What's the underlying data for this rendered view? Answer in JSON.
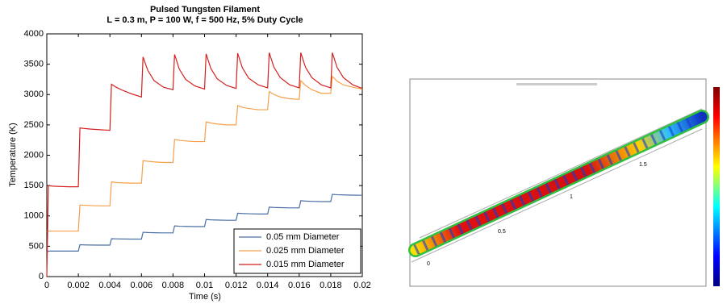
{
  "chart_data": {
    "type": "line",
    "title": "Pulsed Tungsten Filament",
    "subtitle": "L = 0.3 m, P = 100 W, f = 500 Hz, 5% Duty Cycle",
    "x_label": "Time (s)",
    "y_label": "Temperature (K)",
    "xlim": [
      0,
      0.02
    ],
    "ylim": [
      0,
      4000
    ],
    "xticks": [
      0,
      0.002,
      0.004,
      0.006,
      0.008,
      0.01,
      0.012,
      0.014,
      0.016,
      0.018,
      0.02
    ],
    "yticks": [
      0,
      500,
      1000,
      1500,
      2000,
      2500,
      3000,
      3500,
      4000
    ],
    "legend": "lower right",
    "x": [
      0,
      0.0001,
      0.0004,
      0.0008,
      0.0014,
      0.002,
      0.0021,
      0.0024,
      0.0028,
      0.0034,
      0.004,
      0.0041,
      0.0044,
      0.0048,
      0.0054,
      0.006,
      0.0061,
      0.0064,
      0.0068,
      0.0074,
      0.008,
      0.0081,
      0.0084,
      0.0088,
      0.0094,
      0.01,
      0.0101,
      0.0104,
      0.0108,
      0.0114,
      0.012,
      0.0121,
      0.0124,
      0.0128,
      0.0134,
      0.014,
      0.0141,
      0.0144,
      0.0148,
      0.0154,
      0.016,
      0.0161,
      0.0164,
      0.0168,
      0.0174,
      0.018,
      0.0181,
      0.0184,
      0.0188,
      0.0194,
      0.02
    ],
    "series": [
      {
        "name": "0.05 mm Diameter",
        "color": "#4a6fa5",
        "values": [
          400,
          420,
          420,
          420,
          420,
          420,
          525,
          522,
          520,
          518,
          518,
          625,
          622,
          620,
          618,
          618,
          730,
          726,
          723,
          720,
          720,
          835,
          830,
          827,
          824,
          824,
          940,
          935,
          932,
          928,
          928,
          1045,
          1040,
          1036,
          1032,
          1032,
          1145,
          1140,
          1136,
          1132,
          1132,
          1250,
          1244,
          1240,
          1236,
          1236,
          1355,
          1350,
          1346,
          1342,
          1340
        ]
      },
      {
        "name": "0.025 mm Diameter",
        "color": "#f5a04a",
        "values": [
          740,
          750,
          750,
          750,
          750,
          750,
          1180,
          1175,
          1170,
          1165,
          1165,
          1560,
          1550,
          1545,
          1540,
          1540,
          1910,
          1900,
          1890,
          1880,
          1880,
          2260,
          2245,
          2235,
          2225,
          2225,
          2550,
          2530,
          2515,
          2500,
          2500,
          2820,
          2790,
          2770,
          2750,
          2750,
          3050,
          3000,
          2960,
          2930,
          2920,
          3230,
          3150,
          3080,
          3020,
          3020,
          3300,
          3220,
          3160,
          3120,
          3090
        ]
      },
      {
        "name": "0.015 mm Diameter",
        "color": "#d42020",
        "values": [
          0,
          1500,
          1490,
          1485,
          1480,
          1480,
          2450,
          2440,
          2430,
          2420,
          2410,
          3170,
          3120,
          3070,
          3010,
          2960,
          3620,
          3400,
          3230,
          3120,
          3080,
          3660,
          3420,
          3250,
          3140,
          3090,
          3670,
          3430,
          3260,
          3150,
          3100,
          3680,
          3440,
          3270,
          3160,
          3110,
          3690,
          3450,
          3280,
          3160,
          3110,
          3690,
          3450,
          3280,
          3160,
          3110,
          3690,
          3450,
          3280,
          3160,
          3100
        ]
      }
    ]
  },
  "simulation": {
    "axis_labels": [
      "0",
      "0.5",
      "1",
      "1.5"
    ]
  }
}
